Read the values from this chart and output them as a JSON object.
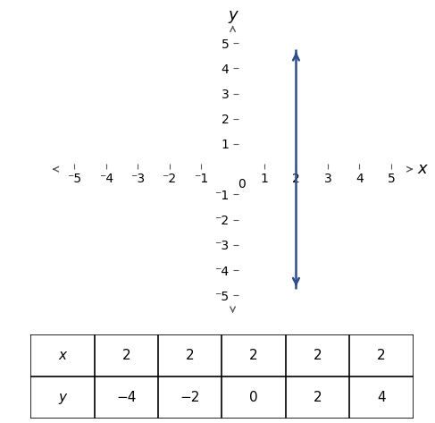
{
  "xlim": [
    -5.7,
    5.7
  ],
  "ylim": [
    -5.7,
    5.7
  ],
  "xticks": [
    -5,
    -4,
    -3,
    -2,
    -1,
    1,
    2,
    3,
    4,
    5
  ],
  "yticks": [
    -5,
    -4,
    -3,
    -2,
    -1,
    1,
    2,
    3,
    4,
    5
  ],
  "xlabel": "x",
  "ylabel": "y",
  "line_x": 2,
  "line_ystart": -4.75,
  "line_yend": 4.75,
  "line_color": "#2E4D8B",
  "line_width": 1.8,
  "axis_color": "#595959",
  "table_x_label": "x",
  "table_y_label": "y",
  "table_x_values": [
    2,
    2,
    2,
    2,
    2
  ],
  "table_y_values": [
    -4,
    -2,
    0,
    2,
    4
  ],
  "tick_fontsize": 10,
  "axis_label_fontsize": 13,
  "arrow_mutation_scale": 10,
  "fig_width": 4.87,
  "fig_height": 4.73,
  "dpi": 100
}
